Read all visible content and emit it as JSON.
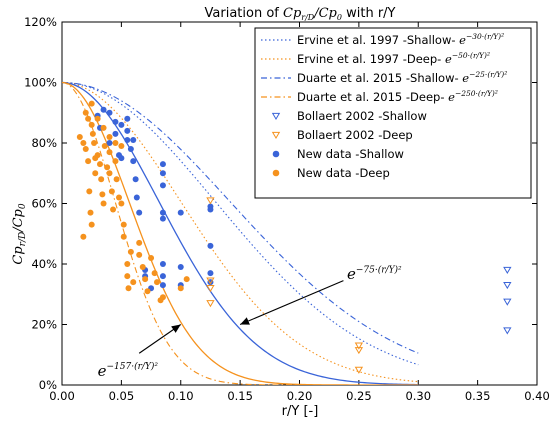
{
  "chart_data": {
    "type": "scatter",
    "title": "Variation of Cp_{r/D}/Cp_0 with r/Y",
    "xlabel": "r/Y [-]",
    "ylabel": "Cp_{r/D}/Cp_0",
    "xlim": [
      0,
      0.4
    ],
    "ylim": [
      0,
      1.2
    ],
    "x_ticks": [
      "0.00",
      "0.05",
      "0.10",
      "0.15",
      "0.20",
      "0.25",
      "0.30",
      "0.35",
      "0.40"
    ],
    "y_ticks": [
      "0%",
      "20%",
      "40%",
      "60%",
      "80%",
      "100%",
      "120%"
    ],
    "grid": false,
    "legend_position": "top-right",
    "colors": {
      "blue": "#3a64d8",
      "orange": "#f5921e"
    },
    "series": [
      {
        "name": "Ervine et al. 1997 -Shallow-",
        "formula_sup": "−30·(r/Y)²",
        "kind": "curve",
        "k": 30,
        "color": "#3a64d8",
        "dash": "1.5,2.5"
      },
      {
        "name": "Ervine et al. 1997 -Deep-",
        "formula_sup": "−50·(r/Y)²",
        "kind": "curve",
        "k": 50,
        "color": "#f5921e",
        "dash": "1.5,2.5"
      },
      {
        "name": "Duarte et al. 2015 -Shallow-",
        "formula_sup": "−25·(r/Y)²",
        "kind": "curve",
        "k": 25,
        "color": "#3a64d8",
        "dash": "6,3,1.5,3"
      },
      {
        "name": "Duarte et al. 2015 -Deep-",
        "formula_sup": "−250·(r/Y)²",
        "kind": "curve",
        "k": 250,
        "color": "#f5921e",
        "dash": "6,3,1.5,3"
      },
      {
        "name": "Bollaert 2002 -Shallow",
        "kind": "triangle",
        "color": "#3a64d8",
        "points": [
          [
            0.375,
            0.38
          ],
          [
            0.375,
            0.33
          ],
          [
            0.375,
            0.275
          ],
          [
            0.375,
            0.18
          ]
        ]
      },
      {
        "name": "Bollaert 2002 -Deep",
        "kind": "triangle",
        "color": "#f5921e",
        "points": [
          [
            0.125,
            0.61
          ],
          [
            0.125,
            0.345
          ],
          [
            0.125,
            0.32
          ],
          [
            0.125,
            0.27
          ],
          [
            0.25,
            0.13
          ],
          [
            0.25,
            0.115
          ],
          [
            0.25,
            0.05
          ]
        ]
      },
      {
        "name": "New data -Shallow",
        "kind": "dot",
        "color": "#3a64d8",
        "points": [
          [
            0.03,
            0.89
          ],
          [
            0.032,
            0.85
          ],
          [
            0.035,
            0.91
          ],
          [
            0.04,
            0.9
          ],
          [
            0.04,
            0.8
          ],
          [
            0.045,
            0.87
          ],
          [
            0.045,
            0.83
          ],
          [
            0.048,
            0.76
          ],
          [
            0.05,
            0.75
          ],
          [
            0.05,
            0.86
          ],
          [
            0.055,
            0.88
          ],
          [
            0.055,
            0.84
          ],
          [
            0.055,
            0.81
          ],
          [
            0.058,
            0.78
          ],
          [
            0.06,
            0.81
          ],
          [
            0.06,
            0.74
          ],
          [
            0.062,
            0.68
          ],
          [
            0.063,
            0.62
          ],
          [
            0.065,
            0.57
          ],
          [
            0.07,
            0.38
          ],
          [
            0.07,
            0.36
          ],
          [
            0.075,
            0.32
          ],
          [
            0.085,
            0.73
          ],
          [
            0.085,
            0.7
          ],
          [
            0.085,
            0.66
          ],
          [
            0.085,
            0.57
          ],
          [
            0.085,
            0.55
          ],
          [
            0.085,
            0.4
          ],
          [
            0.085,
            0.36
          ],
          [
            0.085,
            0.33
          ],
          [
            0.1,
            0.57
          ],
          [
            0.1,
            0.39
          ],
          [
            0.1,
            0.33
          ],
          [
            0.125,
            0.59
          ],
          [
            0.125,
            0.58
          ],
          [
            0.125,
            0.46
          ],
          [
            0.125,
            0.37
          ],
          [
            0.125,
            0.34
          ]
        ]
      },
      {
        "name": "New data -Deep",
        "kind": "dot",
        "color": "#f5921e",
        "points": [
          [
            0.015,
            0.82
          ],
          [
            0.018,
            0.8
          ],
          [
            0.02,
            0.9
          ],
          [
            0.02,
            0.78
          ],
          [
            0.022,
            0.88
          ],
          [
            0.022,
            0.74
          ],
          [
            0.023,
            0.64
          ],
          [
            0.024,
            0.57
          ],
          [
            0.025,
            0.93
          ],
          [
            0.025,
            0.86
          ],
          [
            0.026,
            0.83
          ],
          [
            0.027,
            0.8
          ],
          [
            0.028,
            0.75
          ],
          [
            0.028,
            0.7
          ],
          [
            0.03,
            0.88
          ],
          [
            0.03,
            0.76
          ],
          [
            0.032,
            0.73
          ],
          [
            0.033,
            0.68
          ],
          [
            0.034,
            0.63
          ],
          [
            0.035,
            0.85
          ],
          [
            0.035,
            0.6
          ],
          [
            0.036,
            0.79
          ],
          [
            0.038,
            0.72
          ],
          [
            0.04,
            0.82
          ],
          [
            0.04,
            0.77
          ],
          [
            0.04,
            0.7
          ],
          [
            0.042,
            0.64
          ],
          [
            0.043,
            0.58
          ],
          [
            0.045,
            0.8
          ],
          [
            0.045,
            0.74
          ],
          [
            0.046,
            0.68
          ],
          [
            0.048,
            0.62
          ],
          [
            0.05,
            0.79
          ],
          [
            0.05,
            0.6
          ],
          [
            0.052,
            0.53
          ],
          [
            0.052,
            0.49
          ],
          [
            0.055,
            0.4
          ],
          [
            0.055,
            0.36
          ],
          [
            0.056,
            0.32
          ],
          [
            0.058,
            0.44
          ],
          [
            0.06,
            0.34
          ],
          [
            0.065,
            0.47
          ],
          [
            0.065,
            0.43
          ],
          [
            0.068,
            0.39
          ],
          [
            0.07,
            0.35
          ],
          [
            0.072,
            0.31
          ],
          [
            0.075,
            0.42
          ],
          [
            0.078,
            0.37
          ],
          [
            0.08,
            0.34
          ],
          [
            0.083,
            0.28
          ],
          [
            0.085,
            0.29
          ],
          [
            0.1,
            0.32
          ],
          [
            0.105,
            0.35
          ],
          [
            0.018,
            0.49
          ],
          [
            0.025,
            0.53
          ]
        ]
      }
    ],
    "main_curves": [
      {
        "k": 75,
        "color": "#3a64d8"
      },
      {
        "k": 157,
        "color": "#f5921e"
      }
    ],
    "annotations": [
      {
        "base": "e",
        "sup": "−75·(r/Y)²",
        "at": [
          0.24,
          0.37
        ],
        "arrow_to": [
          0.15,
          0.2
        ]
      },
      {
        "base": "e",
        "sup": "−157·(r/Y)²",
        "at": [
          0.03,
          0.05
        ],
        "arrow_to": [
          0.1,
          0.2
        ]
      }
    ]
  }
}
